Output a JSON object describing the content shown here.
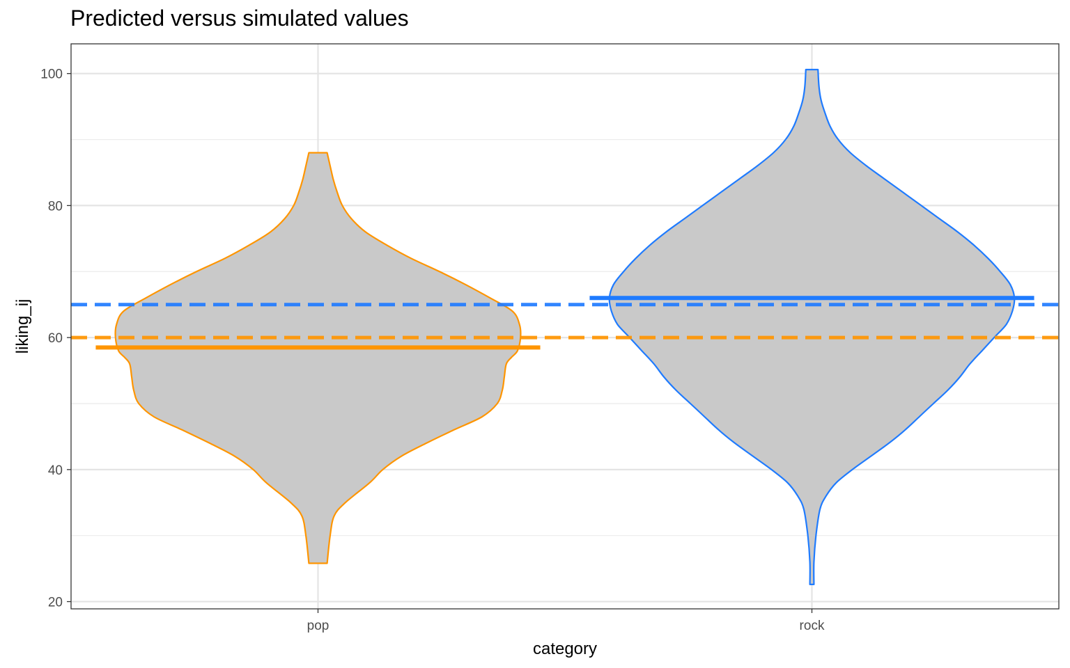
{
  "chart_data": {
    "type": "violin",
    "title": "Predicted versus simulated values",
    "xlabel": "category",
    "ylabel": "liking_ij",
    "categories": [
      "pop",
      "rock"
    ],
    "ylim": [
      18.9,
      104.5
    ],
    "yticks": [
      20,
      40,
      60,
      80,
      100
    ],
    "ytick_labels": [
      "20",
      "40",
      "60",
      "80",
      "100"
    ],
    "grid": true,
    "violins": [
      {
        "category": "pop",
        "color": "#ff9500",
        "fill": "#c9c9c9",
        "min": 25.8,
        "max": 88.0,
        "profile": [
          [
            25.8,
            0.045
          ],
          [
            30,
            0.06
          ],
          [
            33,
            0.08
          ],
          [
            35,
            0.135
          ],
          [
            38,
            0.255
          ],
          [
            40,
            0.32
          ],
          [
            42,
            0.41
          ],
          [
            44,
            0.535
          ],
          [
            46,
            0.67
          ],
          [
            48,
            0.81
          ],
          [
            50,
            0.885
          ],
          [
            52,
            0.91
          ],
          [
            54,
            0.92
          ],
          [
            56,
            0.93
          ],
          [
            57,
            0.955
          ],
          [
            58,
            0.985
          ],
          [
            60,
            1.0
          ],
          [
            62,
            0.995
          ],
          [
            64,
            0.96
          ],
          [
            66,
            0.85
          ],
          [
            68,
            0.73
          ],
          [
            70,
            0.6
          ],
          [
            72,
            0.46
          ],
          [
            74,
            0.34
          ],
          [
            76,
            0.235
          ],
          [
            78,
            0.165
          ],
          [
            80,
            0.12
          ],
          [
            82,
            0.095
          ],
          [
            84,
            0.075
          ],
          [
            86,
            0.06
          ],
          [
            88.0,
            0.045
          ]
        ]
      },
      {
        "category": "rock",
        "color": "#1f7bff",
        "fill": "#c9c9c9",
        "min": 22.6,
        "max": 100.6,
        "profile": [
          [
            22.6,
            0.01
          ],
          [
            26,
            0.01
          ],
          [
            30,
            0.02
          ],
          [
            34,
            0.04
          ],
          [
            36,
            0.07
          ],
          [
            38,
            0.12
          ],
          [
            40,
            0.2
          ],
          [
            42,
            0.29
          ],
          [
            44,
            0.38
          ],
          [
            46,
            0.46
          ],
          [
            48,
            0.53
          ],
          [
            50,
            0.6
          ],
          [
            52,
            0.67
          ],
          [
            54,
            0.73
          ],
          [
            56,
            0.78
          ],
          [
            58,
            0.84
          ],
          [
            60,
            0.9
          ],
          [
            62,
            0.96
          ],
          [
            64,
            0.99
          ],
          [
            66,
            1.0
          ],
          [
            68,
            0.98
          ],
          [
            70,
            0.93
          ],
          [
            72,
            0.87
          ],
          [
            74,
            0.8
          ],
          [
            76,
            0.72
          ],
          [
            78,
            0.63
          ],
          [
            80,
            0.54
          ],
          [
            82,
            0.45
          ],
          [
            84,
            0.36
          ],
          [
            86,
            0.27
          ],
          [
            88,
            0.19
          ],
          [
            90,
            0.13
          ],
          [
            92,
            0.09
          ],
          [
            94,
            0.065
          ],
          [
            96,
            0.045
          ],
          [
            98,
            0.035
          ],
          [
            100.6,
            0.03
          ]
        ]
      }
    ],
    "predicted_lines": [
      {
        "category": "pop",
        "value": 58.5,
        "color": "#ff9500",
        "style": "solid"
      },
      {
        "category": "rock",
        "value": 66.0,
        "color": "#1f7bff",
        "style": "solid"
      }
    ],
    "reference_lines": [
      {
        "value": 65.0,
        "color": "#1f7bff",
        "style": "dashed"
      },
      {
        "value": 60.0,
        "color": "#ff9500",
        "style": "dashed"
      }
    ]
  }
}
